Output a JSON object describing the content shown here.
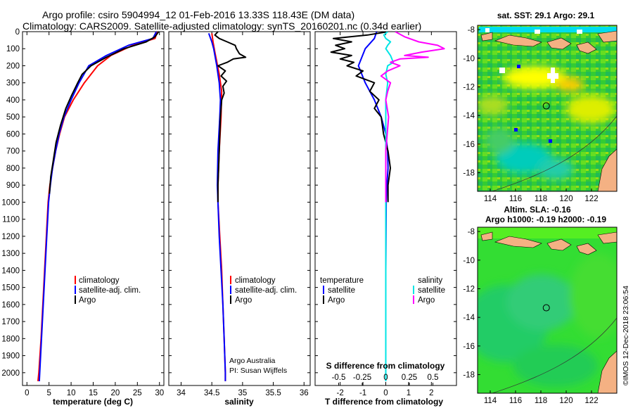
{
  "header": {
    "line1": "Argo profile: csiro 5904994_12 01-Feb-2016 13.33S 118.43E (DM data)",
    "line2": "Climatology: CARS2009. Satellite-adjusted climatology: synTS_20160201.nc (0.34d earlier)"
  },
  "colors": {
    "climatology": "#ff0000",
    "satellite": "#0000ff",
    "argo": "#000000",
    "sat_salinity": "#00e5e5",
    "argo_salinity": "#ff00ff"
  },
  "depth_axis": {
    "ylim": [
      0,
      2075
    ],
    "ticks": [
      0,
      100,
      200,
      300,
      400,
      500,
      600,
      700,
      800,
      900,
      1000,
      1100,
      1200,
      1300,
      1400,
      1500,
      1600,
      1700,
      1800,
      1900,
      2000
    ]
  },
  "chart_data": [
    {
      "type": "line",
      "name": "temperature",
      "xlabel": "temperature (deg C)",
      "xlim": [
        -1,
        31
      ],
      "xticks": [
        0,
        5,
        10,
        15,
        20,
        25,
        30
      ],
      "legend": [
        "climatology",
        "satellite-adj. clim.",
        "Argo"
      ],
      "series": [
        {
          "name": "climatology",
          "color": "#ff0000",
          "points": [
            [
              29.5,
              0
            ],
            [
              29,
              40
            ],
            [
              24,
              80
            ],
            [
              19,
              140
            ],
            [
              16,
              200
            ],
            [
              13,
              300
            ],
            [
              10.5,
              400
            ],
            [
              8.5,
              500
            ],
            [
              7.4,
              600
            ],
            [
              6.5,
              700
            ],
            [
              5.8,
              800
            ],
            [
              5.2,
              900
            ],
            [
              4.8,
              1000
            ],
            [
              4.4,
              1200
            ],
            [
              4,
              1400
            ],
            [
              3.6,
              1600
            ],
            [
              3.2,
              1800
            ],
            [
              2.7,
              2000
            ],
            [
              2.5,
              2050
            ]
          ]
        },
        {
          "name": "satellite-adj. clim.",
          "color": "#0000ff",
          "points": [
            [
              29.3,
              0
            ],
            [
              28.5,
              40
            ],
            [
              23,
              80
            ],
            [
              18,
              140
            ],
            [
              14,
              200
            ],
            [
              11.8,
              300
            ],
            [
              10,
              400
            ],
            [
              8.4,
              500
            ],
            [
              7.3,
              600
            ],
            [
              6.5,
              700
            ],
            [
              5.8,
              800
            ],
            [
              5.3,
              900
            ],
            [
              4.9,
              1000
            ],
            [
              4.5,
              1200
            ],
            [
              4.1,
              1400
            ],
            [
              3.7,
              1600
            ],
            [
              3.3,
              1800
            ],
            [
              2.9,
              2000
            ],
            [
              2.8,
              2050
            ]
          ]
        },
        {
          "name": "Argo",
          "color": "#000000",
          "points": [
            [
              29.8,
              0
            ],
            [
              29,
              30
            ],
            [
              27,
              60
            ],
            [
              22,
              100
            ],
            [
              18,
              150
            ],
            [
              14.5,
              200
            ],
            [
              12.5,
              250
            ],
            [
              11.5,
              300
            ],
            [
              10,
              380
            ],
            [
              8.8,
              450
            ],
            [
              7.6,
              550
            ],
            [
              6.6,
              650
            ],
            [
              6,
              750
            ],
            [
              5.4,
              850
            ],
            [
              5.1,
              950
            ]
          ]
        }
      ]
    },
    {
      "type": "line",
      "name": "salinity",
      "xlabel": "salinity",
      "xlim": [
        33.8,
        36.1
      ],
      "xticks": [
        34,
        34.5,
        35,
        35.5,
        36
      ],
      "legend": [
        "climatology",
        "satellite-adj. clim.",
        "Argo"
      ],
      "series": [
        {
          "name": "climatology",
          "color": "#ff0000",
          "points": [
            [
              34.5,
              10
            ],
            [
              34.52,
              60
            ],
            [
              34.55,
              120
            ],
            [
              34.62,
              250
            ],
            [
              34.66,
              350
            ],
            [
              34.65,
              500
            ],
            [
              34.62,
              700
            ],
            [
              34.6,
              900
            ],
            [
              34.6,
              1000
            ],
            [
              34.63,
              1200
            ],
            [
              34.66,
              1400
            ],
            [
              34.68,
              1600
            ],
            [
              34.7,
              1800
            ],
            [
              34.72,
              2000
            ],
            [
              34.72,
              2050
            ]
          ]
        },
        {
          "name": "satellite-adj. clim.",
          "color": "#0000ff",
          "points": [
            [
              34.45,
              10
            ],
            [
              34.5,
              60
            ],
            [
              34.53,
              100
            ],
            [
              34.58,
              200
            ],
            [
              34.62,
              300
            ],
            [
              34.64,
              400
            ],
            [
              34.63,
              500
            ],
            [
              34.6,
              700
            ],
            [
              34.59,
              900
            ],
            [
              34.6,
              1000
            ],
            [
              34.62,
              1200
            ],
            [
              34.65,
              1400
            ],
            [
              34.68,
              1600
            ],
            [
              34.7,
              1800
            ],
            [
              34.72,
              2000
            ],
            [
              34.72,
              2050
            ]
          ]
        },
        {
          "name": "Argo",
          "color": "#000000",
          "points": [
            [
              34.6,
              0
            ],
            [
              34.55,
              20
            ],
            [
              34.62,
              40
            ],
            [
              34.75,
              60
            ],
            [
              34.88,
              80
            ],
            [
              34.9,
              100
            ],
            [
              34.95,
              130
            ],
            [
              35.05,
              150
            ],
            [
              34.85,
              160
            ],
            [
              34.75,
              180
            ],
            [
              34.6,
              200
            ],
            [
              34.72,
              230
            ],
            [
              34.65,
              260
            ],
            [
              34.74,
              290
            ],
            [
              34.68,
              320
            ],
            [
              34.7,
              360
            ],
            [
              34.66,
              400
            ],
            [
              34.64,
              500
            ],
            [
              34.62,
              700
            ],
            [
              34.6,
              900
            ],
            [
              34.6,
              1000
            ]
          ]
        }
      ],
      "annotations": [
        "Argo Australia",
        "PI: Susan Wijffels"
      ]
    },
    {
      "type": "line",
      "name": "difference",
      "xlabel": "T difference from climatology",
      "xlim": [
        -3.1,
        3.1
      ],
      "xticks": [
        -2,
        -1,
        0,
        1,
        2
      ],
      "top_axis_label": "S difference from climatology",
      "top_xlim": [
        -0.75,
        0.75
      ],
      "top_xticks": [
        -0.5,
        -0.25,
        0,
        0.25,
        0.5
      ],
      "top_tick_labels": [
        "-0.5",
        "-0.25",
        "0",
        "0.25",
        "0.5"
      ],
      "legend_left_title": "temperature",
      "legend_right_title": "salinity",
      "legend_left": [
        "satellite",
        "Argo"
      ],
      "legend_right": [
        "satellite",
        "Argo"
      ],
      "series": [
        {
          "name": "temperature satellite",
          "color": "#0000ff",
          "points": [
            [
              -0.4,
              0
            ],
            [
              -0.5,
              40
            ],
            [
              -0.9,
              100
            ],
            [
              -1.2,
              200
            ],
            [
              -0.9,
              300
            ],
            [
              -0.5,
              400
            ],
            [
              -0.2,
              500
            ],
            [
              0,
              600
            ],
            [
              0.08,
              700
            ],
            [
              0.1,
              800
            ],
            [
              0.05,
              900
            ],
            [
              0.02,
              1000
            ],
            [
              0.01,
              1200
            ],
            [
              0,
              1400
            ],
            [
              0,
              1600
            ],
            [
              0,
              1800
            ],
            [
              0,
              2000
            ],
            [
              0,
              2050
            ]
          ]
        },
        {
          "name": "temperature Argo",
          "color": "#000000",
          "points": [
            [
              0.1,
              0
            ],
            [
              -0.8,
              20
            ],
            [
              -2.3,
              40
            ],
            [
              -1.5,
              60
            ],
            [
              -2.2,
              80
            ],
            [
              -1.8,
              100
            ],
            [
              -2.4,
              120
            ],
            [
              -1.5,
              140
            ],
            [
              -2,
              160
            ],
            [
              -1.4,
              180
            ],
            [
              -1.7,
              200
            ],
            [
              -1,
              230
            ],
            [
              -1.3,
              260
            ],
            [
              -0.5,
              300
            ],
            [
              -0.7,
              350
            ],
            [
              -0.3,
              400
            ],
            [
              -0.5,
              450
            ],
            [
              -0.2,
              500
            ],
            [
              -0.1,
              600
            ],
            [
              0.1,
              700
            ],
            [
              0.2,
              800
            ],
            [
              0.1,
              900
            ],
            [
              0.1,
              1000
            ]
          ]
        },
        {
          "name": "salinity satellite",
          "color": "#00e5e5",
          "points": [
            [
              0.02,
              0
            ],
            [
              -0.02,
              20
            ],
            [
              0,
              40
            ],
            [
              0.05,
              60
            ],
            [
              0.02,
              80
            ],
            [
              0,
              100
            ],
            [
              0.05,
              140
            ],
            [
              0.08,
              180
            ],
            [
              0.02,
              200
            ],
            [
              0,
              250
            ],
            [
              0.02,
              300
            ],
            [
              0,
              400
            ],
            [
              0,
              600
            ],
            [
              0,
              800
            ],
            [
              0,
              1000
            ],
            [
              0,
              1200
            ],
            [
              0,
              1400
            ],
            [
              0,
              1600
            ],
            [
              0,
              1800
            ],
            [
              0,
              2000
            ],
            [
              0,
              2050
            ]
          ]
        },
        {
          "name": "salinity Argo",
          "color": "#ff00ff",
          "points": [
            [
              0.1,
              0
            ],
            [
              0.2,
              30
            ],
            [
              0.35,
              60
            ],
            [
              0.55,
              80
            ],
            [
              0.62,
              100
            ],
            [
              0.38,
              120
            ],
            [
              0.2,
              140
            ],
            [
              0.45,
              150
            ],
            [
              0.15,
              160
            ],
            [
              0.05,
              180
            ],
            [
              0.15,
              200
            ],
            [
              0.02,
              230
            ],
            [
              -0.05,
              260
            ],
            [
              0.05,
              300
            ],
            [
              0.02,
              350
            ],
            [
              0,
              400
            ],
            [
              0.03,
              500
            ],
            [
              0,
              700
            ],
            [
              0,
              900
            ],
            [
              0,
              1000
            ]
          ]
        }
      ]
    },
    {
      "type": "heatmap",
      "name": "sst-map",
      "title": "sat. SST: 29.1 Argo: 29.1",
      "xticks": [
        114,
        116,
        118,
        120,
        122
      ],
      "xlim": [
        113,
        124
      ],
      "yticks": [
        -8,
        -10,
        -12,
        -14,
        -16,
        -18
      ],
      "ylim": [
        -19.3,
        -7.7
      ],
      "argo_position": [
        118.43,
        -13.33
      ]
    },
    {
      "type": "heatmap",
      "name": "sla-map",
      "title": "Altim. SLA: -0.16",
      "subtitle": "Argo h1000: -0.19 h2000: -0.19",
      "xticks": [
        114,
        116,
        118,
        120,
        122
      ],
      "xlim": [
        113,
        124
      ],
      "yticks": [
        -8,
        -10,
        -12,
        -14,
        -16,
        -18
      ],
      "ylim": [
        -19.3,
        -7.7
      ],
      "argo_position": [
        118.43,
        -13.33
      ]
    }
  ],
  "footer": {
    "credit": "©IMOS 12-Dec-2018 23:06:54"
  }
}
